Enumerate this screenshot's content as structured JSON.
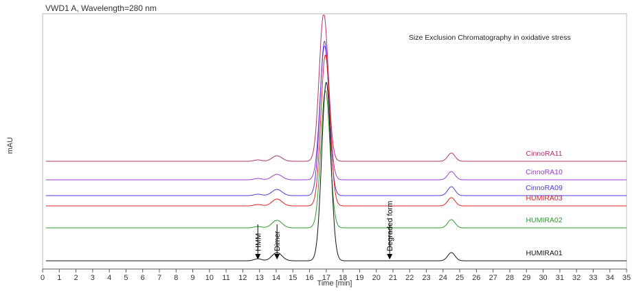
{
  "chart_data": {
    "type": "line",
    "header": "VWD1 A, Wavelength=280 nm",
    "title": "Size Exclusion Chromatography in oxidative stress",
    "xlabel": "Time [min]",
    "ylabel": "mAU",
    "xlim": [
      0,
      35
    ],
    "x_ticks": [
      0,
      1,
      2,
      3,
      4,
      5,
      6,
      7,
      8,
      9,
      10,
      11,
      12,
      13,
      14,
      15,
      16,
      17,
      18,
      19,
      20,
      21,
      22,
      23,
      24,
      25,
      26,
      27,
      28,
      29,
      30,
      31,
      32,
      33,
      34,
      35
    ],
    "series": [
      {
        "name": "CinnoRA11",
        "color": "#b0306a",
        "baseline_offset": 145,
        "peaks": [
          {
            "t": 12.9,
            "h": 2
          },
          {
            "t": 14.05,
            "h": 8
          },
          {
            "t": 16.85,
            "h": 215
          },
          {
            "t": 24.5,
            "h": 12
          }
        ]
      },
      {
        "name": "CinnoRA10",
        "color": "#9a3ad0",
        "baseline_offset": 118,
        "peaks": [
          {
            "t": 12.9,
            "h": 2
          },
          {
            "t": 14.05,
            "h": 8
          },
          {
            "t": 16.9,
            "h": 195
          },
          {
            "t": 24.5,
            "h": 12
          }
        ]
      },
      {
        "name": "CinnoRA09",
        "color": "#4a3ad8",
        "baseline_offset": 95,
        "peaks": [
          {
            "t": 12.9,
            "h": 2
          },
          {
            "t": 14.05,
            "h": 9
          },
          {
            "t": 16.9,
            "h": 225
          },
          {
            "t": 24.5,
            "h": 13
          }
        ]
      },
      {
        "name": "HUMIRA03",
        "color": "#e02020",
        "baseline_offset": 80,
        "peaks": [
          {
            "t": 12.9,
            "h": 2
          },
          {
            "t": 14.05,
            "h": 10
          },
          {
            "t": 16.95,
            "h": 220
          },
          {
            "t": 24.5,
            "h": 12
          }
        ]
      },
      {
        "name": "HUMIRA02",
        "color": "#2a9a2a",
        "baseline_offset": 48,
        "peaks": [
          {
            "t": 12.9,
            "h": 2
          },
          {
            "t": 14.05,
            "h": 11
          },
          {
            "t": 16.95,
            "h": 200
          },
          {
            "t": 24.5,
            "h": 12
          }
        ]
      },
      {
        "name": "HUMIRA01",
        "color": "#111111",
        "baseline_offset": 0,
        "peaks": [
          {
            "t": 12.9,
            "h": 3
          },
          {
            "t": 14.05,
            "h": 12
          },
          {
            "t": 17.0,
            "h": 260
          },
          {
            "t": 24.5,
            "h": 12
          }
        ]
      }
    ],
    "annotations": [
      {
        "text": "HMM",
        "t": 12.9
      },
      {
        "text": "Dimer",
        "t": 14.05
      },
      {
        "text": "Degraded form",
        "t": 20.8
      }
    ],
    "grid": false,
    "legend": "labels at right end of each trace"
  }
}
